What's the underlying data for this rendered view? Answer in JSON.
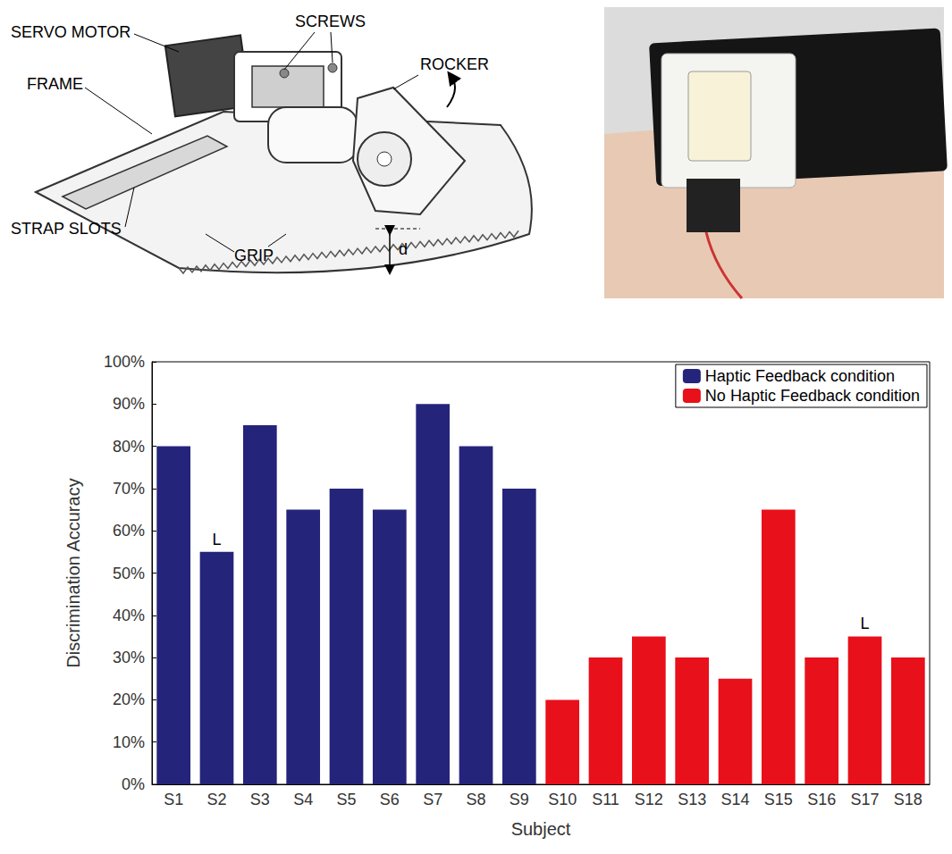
{
  "chart_data": {
    "type": "bar",
    "categories": [
      "S1",
      "S2",
      "S3",
      "S4",
      "S5",
      "S6",
      "S7",
      "S8",
      "S9",
      "S10",
      "S11",
      "S12",
      "S13",
      "S14",
      "S15",
      "S16",
      "S17",
      "S18"
    ],
    "series": [
      {
        "name": "Haptic Feedback condition",
        "color": "#25247b",
        "values": [
          80,
          55,
          85,
          65,
          70,
          65,
          90,
          80,
          70,
          null,
          null,
          null,
          null,
          null,
          null,
          null,
          null,
          null
        ]
      },
      {
        "name": "No Haptic Feedback condition",
        "color": "#e8101a",
        "values": [
          null,
          null,
          null,
          null,
          null,
          null,
          null,
          null,
          null,
          20,
          30,
          35,
          30,
          25,
          65,
          30,
          35,
          30
        ]
      }
    ],
    "xlabel": "Subject",
    "ylabel": "Discrimination Accuracy",
    "ylim": [
      0,
      100
    ],
    "yticks": [
      {
        "value": 0,
        "label": "0%"
      },
      {
        "value": 10,
        "label": "10%"
      },
      {
        "value": 20,
        "label": "20%"
      },
      {
        "value": 30,
        "label": "30%"
      },
      {
        "value": 40,
        "label": "40%"
      },
      {
        "value": 50,
        "label": "50%"
      },
      {
        "value": 60,
        "label": "60%"
      },
      {
        "value": 70,
        "label": "70%"
      },
      {
        "value": 80,
        "label": "80%"
      },
      {
        "value": 90,
        "label": "90%"
      },
      {
        "value": 100,
        "label": "100%"
      }
    ],
    "grid": false,
    "legend": "upper right",
    "annotations": [
      {
        "category": "S2",
        "text": "L"
      },
      {
        "category": "S17",
        "text": "L"
      }
    ]
  },
  "diagram": {
    "labels": [
      "SERVO MOTOR",
      "SCREWS",
      "ROCKER",
      "FRAME",
      "STRAP SLOTS",
      "GRIP",
      "d"
    ]
  }
}
